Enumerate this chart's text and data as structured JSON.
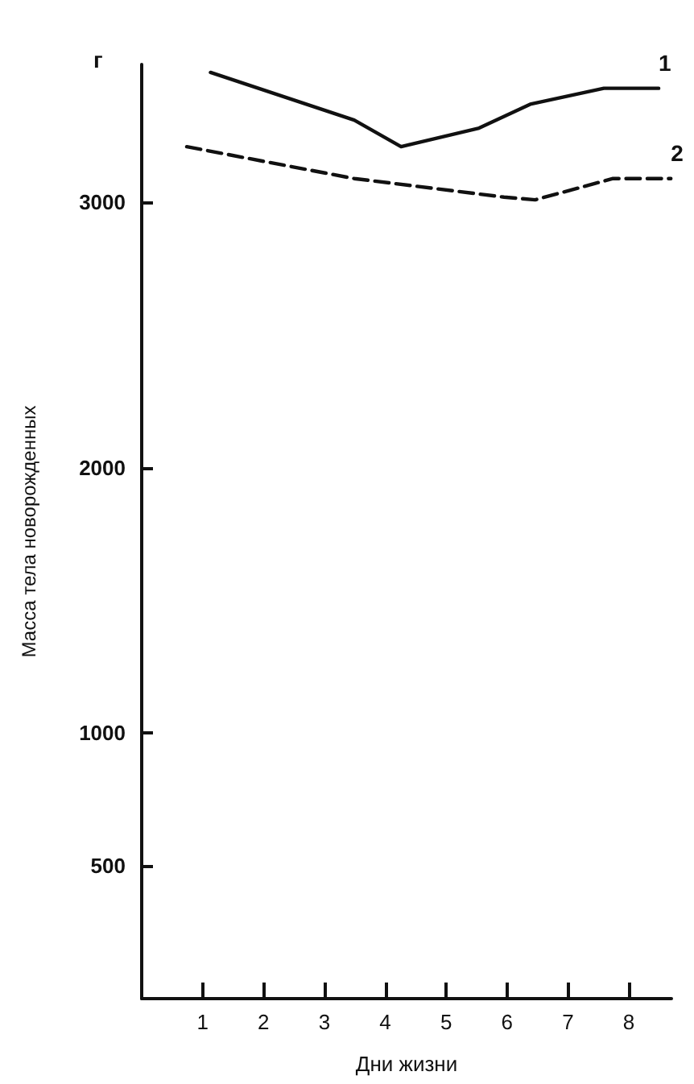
{
  "chart_data": {
    "type": "line",
    "xlabel": "Дни жизни",
    "ylabel": "Масса тела новорожденных",
    "annotations": [
      "г"
    ],
    "xlim": [
      0,
      8.7
    ],
    "xticks": [
      1,
      2,
      3,
      4,
      5,
      6,
      7,
      8
    ],
    "ylim": [
      0,
      3520
    ],
    "yticks": [
      500,
      1000,
      2000,
      3000
    ],
    "grid": false,
    "legend": false,
    "marker": "none",
    "series": [
      {
        "name": "1",
        "color": "#111111",
        "line_style": "solid",
        "x": [
          1.13,
          3.49,
          4.26,
          5.54,
          6.38,
          7.59,
          8.49
        ],
        "values": [
          3490,
          3310,
          3210,
          3280,
          3370,
          3430,
          3430
        ]
      },
      {
        "name": "2",
        "color": "#111111",
        "line_style": "dashed",
        "x": [
          0.74,
          3.49,
          5.95,
          6.46,
          7.74,
          8.69
        ],
        "values": [
          3210,
          3090,
          3020,
          3010,
          3090,
          3090
        ]
      }
    ]
  }
}
